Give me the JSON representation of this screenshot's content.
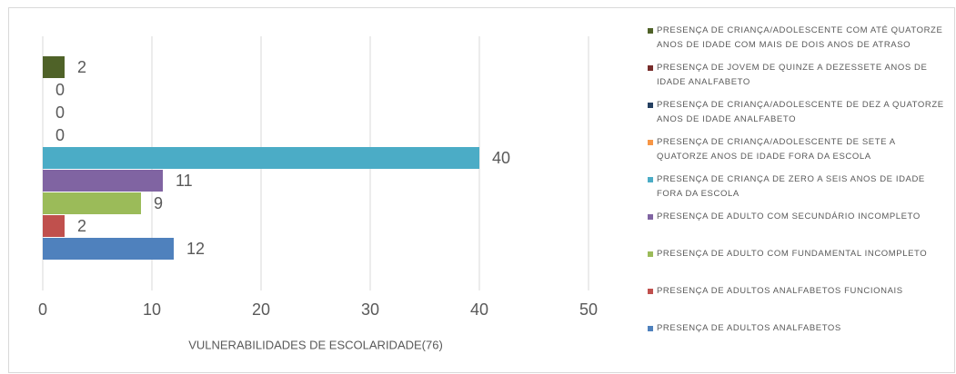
{
  "chart_data": {
    "type": "barh",
    "categories": [
      "VULNERABILIDADES DE ESCOLARIDADE(76)"
    ],
    "series": [
      {
        "name": "PRESENÇA DE CRIANÇA/ADOLESCENTE COM ATÉ QUATORZE ANOS DE IDADE COM MAIS DE DOIS ANOS DE ATRASO",
        "color": "#4f6228",
        "values": [
          2
        ]
      },
      {
        "name": "PRESENÇA DE JOVEM DE QUINZE A DEZESSETE ANOS DE IDADE ANALFABETO",
        "color": "#772c2a",
        "values": [
          0
        ]
      },
      {
        "name": "PRESENÇA DE CRIANÇA/ADOLESCENTE DE DEZ A QUATORZE ANOS DE IDADE ANALFABETO",
        "color": "#254061",
        "values": [
          0
        ]
      },
      {
        "name": "PRESENÇA DE CRIANÇA/ADOLESCENTE DE SETE A QUATORZE ANOS DE IDADE FORA DA ESCOLA",
        "color": "#f79646",
        "values": [
          0
        ]
      },
      {
        "name": "PRESENÇA DE CRIANÇA DE ZERO A SEIS ANOS DE IDADE FORA DA ESCOLA",
        "color": "#4bacc6",
        "values": [
          40
        ]
      },
      {
        "name": "PRESENÇA DE ADULTO COM SECUNDÁRIO INCOMPLETO",
        "color": "#8064a2",
        "values": [
          11
        ]
      },
      {
        "name": "PRESENÇA DE ADULTO COM FUNDAMENTAL INCOMPLETO",
        "color": "#9bbb59",
        "values": [
          9
        ]
      },
      {
        "name": "PRESENÇA DE ADULTOS ANALFABETOS FUNCIONAIS",
        "color": "#c0504d",
        "values": [
          2
        ]
      },
      {
        "name": "PRESENÇA DE ADULTOS ANALFABETOS",
        "color": "#4f81bd",
        "values": [
          12
        ]
      }
    ],
    "xlim": [
      0,
      50
    ],
    "xticks": [
      0,
      10,
      20,
      30,
      40,
      50
    ],
    "grid": true,
    "legend": "right"
  }
}
